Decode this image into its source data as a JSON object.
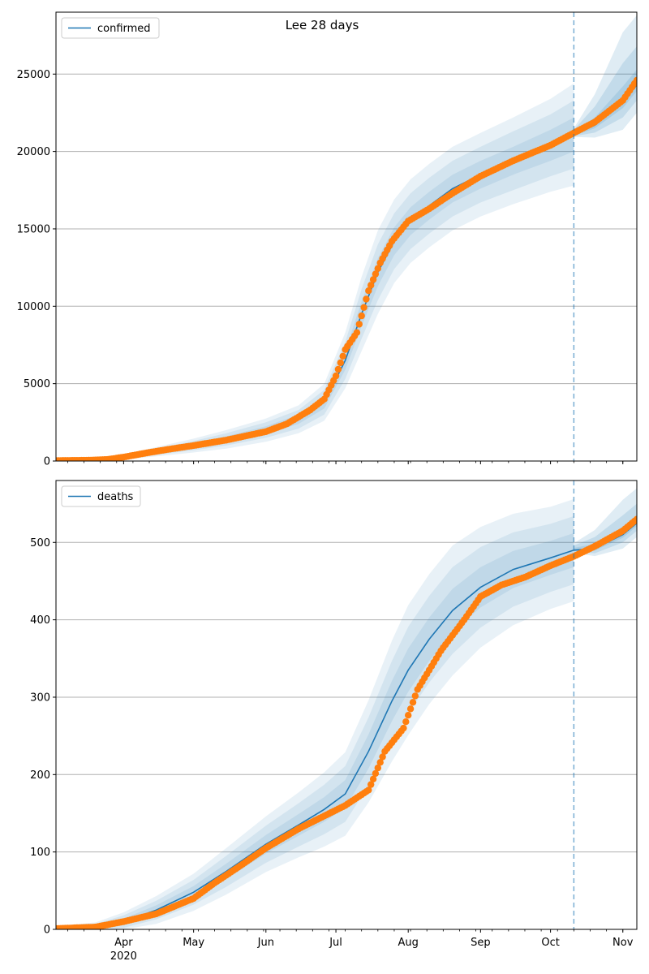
{
  "title": "Lee 28 days",
  "colors": {
    "fit_line": "#1f77b4",
    "band": "#1f77b4",
    "observed": "#ff7f0e",
    "grid": "#b0b0b0",
    "cutoff": "#1f77b4"
  },
  "x_axis": {
    "start": "2020-03-03",
    "end": "2020-11-07",
    "month_ticks": [
      {
        "date": "2020-04-01",
        "label": "Apr",
        "sublabel": "2020"
      },
      {
        "date": "2020-05-01",
        "label": "May",
        "sublabel": ""
      },
      {
        "date": "2020-06-01",
        "label": "Jun",
        "sublabel": ""
      },
      {
        "date": "2020-07-01",
        "label": "Jul",
        "sublabel": ""
      },
      {
        "date": "2020-08-01",
        "label": "Aug",
        "sublabel": ""
      },
      {
        "date": "2020-09-01",
        "label": "Sep",
        "sublabel": ""
      },
      {
        "date": "2020-10-01",
        "label": "Oct",
        "sublabel": ""
      },
      {
        "date": "2020-11-01",
        "label": "Nov",
        "sublabel": ""
      }
    ],
    "minor_tick_interval_days": 7,
    "forecast_cutoff": "2020-10-11"
  },
  "chart_data": [
    {
      "type": "line",
      "legend": "confirmed",
      "legend_position": "top-left",
      "grid": "horizontal",
      "ylim": [
        0,
        29000
      ],
      "yticks": [
        0,
        5000,
        10000,
        15000,
        20000,
        25000
      ],
      "curve_x": [
        "2020-03-03",
        "2020-03-17",
        "2020-04-01",
        "2020-04-15",
        "2020-05-01",
        "2020-05-15",
        "2020-06-01",
        "2020-06-15",
        "2020-06-26",
        "2020-07-05",
        "2020-07-12",
        "2020-07-19",
        "2020-07-26",
        "2020-08-02",
        "2020-08-10",
        "2020-08-20",
        "2020-09-01",
        "2020-09-15",
        "2020-10-01",
        "2020-10-11",
        "2020-10-20",
        "2020-11-01",
        "2020-11-07"
      ],
      "fit": [
        30,
        60,
        250,
        600,
        1000,
        1400,
        2000,
        2700,
        3800,
        6500,
        9500,
        12200,
        14200,
        15500,
        16500,
        17600,
        18500,
        19400,
        20400,
        21100,
        21700,
        23200,
        24300
      ],
      "band_half_widths": [
        [
          10,
          20,
          50,
          100,
          150,
          200,
          250,
          300,
          400,
          600,
          800,
          900,
          900,
          900,
          900,
          900,
          900,
          900,
          1000,
          1100
        ],
        [
          20,
          40,
          100,
          200,
          300,
          400,
          500,
          600,
          800,
          1200,
          1600,
          1800,
          1800,
          1800,
          1800,
          1800,
          1800,
          1900,
          2000,
          2200
        ],
        [
          30,
          60,
          150,
          300,
          450,
          600,
          750,
          900,
          1200,
          1800,
          2400,
          2700,
          2700,
          2700,
          2700,
          2700,
          2700,
          2800,
          3000,
          3300
        ]
      ],
      "forecast_band_half_widths": [
        [
          200,
          500,
          1000
        ],
        [
          300,
          1200,
          2500
        ],
        [
          400,
          2000,
          4500
        ]
      ],
      "observed_x": [
        "2020-03-03",
        "2020-03-17",
        "2020-03-25",
        "2020-04-01",
        "2020-04-10",
        "2020-04-20",
        "2020-05-01",
        "2020-05-15",
        "2020-06-01",
        "2020-06-10",
        "2020-06-20",
        "2020-06-26",
        "2020-07-01",
        "2020-07-05",
        "2020-07-10",
        "2020-07-15",
        "2020-07-20",
        "2020-07-25",
        "2020-08-01",
        "2020-08-10",
        "2020-08-20",
        "2020-09-01",
        "2020-09-15",
        "2020-10-01",
        "2020-10-11",
        "2020-10-20",
        "2020-11-01",
        "2020-11-07"
      ],
      "observed": [
        30,
        50,
        100,
        250,
        500,
        750,
        1000,
        1350,
        1900,
        2400,
        3300,
        4000,
        5500,
        7200,
        8300,
        11000,
        12800,
        14200,
        15500,
        16300,
        17300,
        18400,
        19400,
        20400,
        21200,
        21900,
        23300,
        24600
      ]
    },
    {
      "type": "line",
      "legend": "deaths",
      "legend_position": "top-left",
      "grid": "horizontal",
      "ylim": [
        0,
        580
      ],
      "yticks": [
        0,
        100,
        200,
        300,
        400,
        500
      ],
      "curve_x": [
        "2020-03-03",
        "2020-03-20",
        "2020-04-01",
        "2020-04-15",
        "2020-05-01",
        "2020-05-15",
        "2020-06-01",
        "2020-06-15",
        "2020-06-26",
        "2020-07-05",
        "2020-07-15",
        "2020-07-25",
        "2020-08-01",
        "2020-08-10",
        "2020-08-20",
        "2020-09-01",
        "2020-09-15",
        "2020-10-01",
        "2020-10-11",
        "2020-10-20",
        "2020-11-01",
        "2020-11-07"
      ],
      "fit": [
        1,
        3,
        10,
        25,
        48,
        75,
        110,
        135,
        155,
        175,
        230,
        295,
        335,
        375,
        412,
        442,
        465,
        480,
        490,
        492,
        510,
        525
      ],
      "band_half_widths": [
        [
          1,
          2,
          4,
          6,
          8,
          10,
          12,
          14,
          16,
          18,
          22,
          26,
          28,
          28,
          28,
          26,
          24,
          22,
          22
        ],
        [
          2,
          4,
          8,
          12,
          16,
          20,
          24,
          28,
          32,
          36,
          44,
          52,
          56,
          56,
          56,
          52,
          48,
          44,
          44
        ],
        [
          3,
          6,
          12,
          18,
          24,
          30,
          36,
          42,
          48,
          54,
          66,
          78,
          84,
          84,
          84,
          78,
          72,
          66,
          66
        ]
      ],
      "forecast_band_half_widths": [
        [
          3,
          6,
          10
        ],
        [
          6,
          15,
          25
        ],
        [
          9,
          24,
          45
        ]
      ],
      "observed_x": [
        "2020-03-03",
        "2020-03-20",
        "2020-04-01",
        "2020-04-15",
        "2020-05-01",
        "2020-05-10",
        "2020-05-20",
        "2020-06-01",
        "2020-06-15",
        "2020-06-25",
        "2020-07-05",
        "2020-07-15",
        "2020-07-22",
        "2020-07-30",
        "2020-08-05",
        "2020-08-15",
        "2020-08-25",
        "2020-09-01",
        "2020-09-10",
        "2020-09-20",
        "2020-10-01",
        "2020-10-11",
        "2020-10-20",
        "2020-11-01",
        "2020-11-07"
      ],
      "observed": [
        1,
        3,
        10,
        20,
        40,
        60,
        80,
        105,
        130,
        145,
        160,
        180,
        230,
        260,
        310,
        360,
        400,
        430,
        445,
        455,
        470,
        482,
        495,
        515,
        530
      ]
    }
  ]
}
